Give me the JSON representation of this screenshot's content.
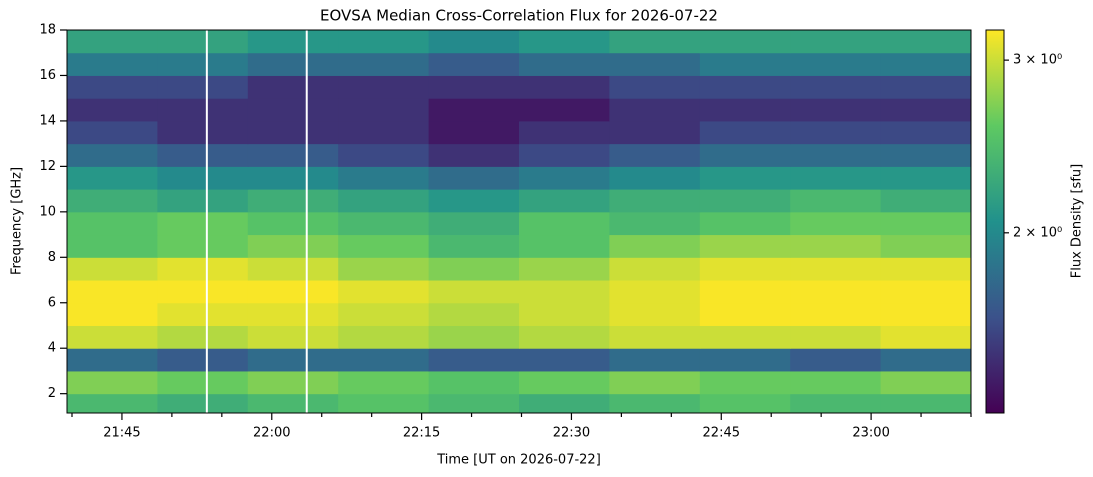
{
  "chart_data": {
    "type": "heatmap",
    "title": "EOVSA Median Cross-Correlation Flux for 2026-07-22",
    "x_label": "Time [UT on 2026-07-22]",
    "y_label": "Frequency [GHz]",
    "colorbar_label": "Flux Density [sfu]",
    "colormap": "viridis",
    "color_scale": "log",
    "clim": [
      1.31,
      3.22
    ],
    "cticks": [
      {
        "value": 2,
        "label": "2 × 10⁰"
      },
      {
        "value": 3,
        "label": "3 × 10⁰"
      }
    ],
    "xlim": [
      1299.5,
      1390
    ],
    "xticks": [
      {
        "value": 1305,
        "label": "21:45"
      },
      {
        "value": 1320,
        "label": "22:00"
      },
      {
        "value": 1335,
        "label": "22:15"
      },
      {
        "value": 1350,
        "label": "22:30"
      },
      {
        "value": 1365,
        "label": "22:45"
      },
      {
        "value": 1380,
        "label": "23:00"
      }
    ],
    "xticks_minor": [
      1300,
      1310,
      1315,
      1325,
      1330,
      1340,
      1345,
      1355,
      1360,
      1370,
      1375,
      1385,
      1390
    ],
    "ylim": [
      1.15,
      18
    ],
    "yticks": [
      2,
      4,
      6,
      8,
      10,
      12,
      14,
      16,
      18
    ],
    "x_bins": [
      1299.5,
      1308.55,
      1317.6,
      1326.65,
      1335.7,
      1344.75,
      1353.8,
      1362.85,
      1371.9,
      1380.95,
      1390
    ],
    "y_bins": [
      1.15,
      2,
      3,
      4,
      5,
      6,
      7,
      8,
      9,
      10,
      11,
      12,
      13,
      14,
      15,
      16,
      17,
      18
    ],
    "z": [
      [
        2.4,
        2.3,
        2.4,
        2.5,
        2.4,
        2.3,
        2.4,
        2.5,
        2.4,
        2.4
      ],
      [
        2.7,
        2.6,
        2.7,
        2.6,
        2.5,
        2.6,
        2.7,
        2.6,
        2.6,
        2.7
      ],
      [
        1.8,
        1.7,
        1.8,
        1.8,
        1.7,
        1.7,
        1.8,
        1.8,
        1.7,
        1.8
      ],
      [
        3.0,
        2.9,
        3.0,
        2.9,
        2.8,
        2.9,
        3.0,
        3.0,
        3.0,
        3.1
      ],
      [
        3.2,
        3.1,
        3.1,
        3.0,
        2.9,
        3.0,
        3.1,
        3.2,
        3.2,
        3.2
      ],
      [
        3.2,
        3.2,
        3.2,
        3.1,
        3.0,
        3.0,
        3.1,
        3.2,
        3.2,
        3.2
      ],
      [
        3.0,
        3.1,
        3.0,
        2.8,
        2.7,
        2.8,
        3.0,
        3.1,
        3.1,
        3.1
      ],
      [
        2.5,
        2.6,
        2.7,
        2.6,
        2.4,
        2.5,
        2.7,
        2.8,
        2.8,
        2.7
      ],
      [
        2.5,
        2.6,
        2.5,
        2.4,
        2.3,
        2.5,
        2.4,
        2.5,
        2.6,
        2.6
      ],
      [
        2.3,
        2.2,
        2.3,
        2.2,
        2.1,
        2.2,
        2.3,
        2.3,
        2.4,
        2.3
      ],
      [
        2.1,
        2.0,
        2.0,
        1.9,
        1.8,
        1.9,
        2.0,
        2.1,
        2.1,
        2.1
      ],
      [
        1.8,
        1.7,
        1.7,
        1.6,
        1.5,
        1.6,
        1.7,
        1.8,
        1.8,
        1.8
      ],
      [
        1.6,
        1.5,
        1.5,
        1.5,
        1.4,
        1.5,
        1.5,
        1.6,
        1.6,
        1.6
      ],
      [
        1.5,
        1.5,
        1.5,
        1.5,
        1.4,
        1.4,
        1.5,
        1.5,
        1.5,
        1.5
      ],
      [
        1.6,
        1.6,
        1.5,
        1.5,
        1.5,
        1.5,
        1.6,
        1.6,
        1.6,
        1.6
      ],
      [
        1.9,
        1.9,
        1.8,
        1.8,
        1.7,
        1.8,
        1.8,
        1.9,
        1.9,
        1.9
      ],
      [
        2.2,
        2.2,
        2.1,
        2.1,
        2.0,
        2.1,
        2.2,
        2.2,
        2.2,
        2.2
      ]
    ],
    "data_gaps": [
      1313.5,
      1323.5
    ]
  }
}
